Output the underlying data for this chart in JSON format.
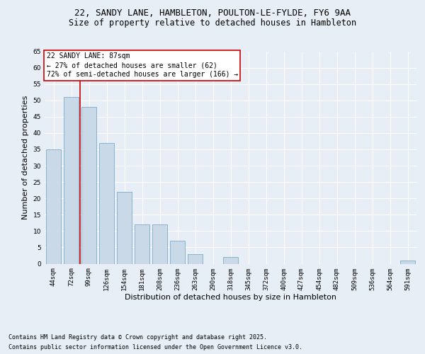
{
  "title1": "22, SANDY LANE, HAMBLETON, POULTON-LE-FYLDE, FY6 9AA",
  "title2": "Size of property relative to detached houses in Hambleton",
  "xlabel": "Distribution of detached houses by size in Hambleton",
  "ylabel": "Number of detached properties",
  "categories": [
    "44sqm",
    "72sqm",
    "99sqm",
    "126sqm",
    "154sqm",
    "181sqm",
    "208sqm",
    "236sqm",
    "263sqm",
    "290sqm",
    "318sqm",
    "345sqm",
    "372sqm",
    "400sqm",
    "427sqm",
    "454sqm",
    "482sqm",
    "509sqm",
    "536sqm",
    "564sqm",
    "591sqm"
  ],
  "values": [
    35,
    51,
    48,
    37,
    22,
    12,
    12,
    7,
    3,
    0,
    2,
    0,
    0,
    0,
    0,
    0,
    0,
    0,
    0,
    0,
    1
  ],
  "bar_color": "#c9d9e8",
  "bar_edge_color": "#7aaac8",
  "red_line_x": 1.5,
  "annotation_title": "22 SANDY LANE: 87sqm",
  "annotation_line1": "← 27% of detached houses are smaller (62)",
  "annotation_line2": "72% of semi-detached houses are larger (166) →",
  "annotation_box_color": "#ffffff",
  "annotation_box_edge": "#cc0000",
  "red_line_color": "#cc0000",
  "bg_color": "#e8eef5",
  "plot_bg_color": "#e8eef5",
  "grid_color": "#ffffff",
  "ylim": [
    0,
    65
  ],
  "yticks": [
    0,
    5,
    10,
    15,
    20,
    25,
    30,
    35,
    40,
    45,
    50,
    55,
    60,
    65
  ],
  "footer1": "Contains HM Land Registry data © Crown copyright and database right 2025.",
  "footer2": "Contains public sector information licensed under the Open Government Licence v3.0.",
  "title1_fontsize": 9,
  "title2_fontsize": 8.5,
  "xlabel_fontsize": 8,
  "ylabel_fontsize": 8,
  "tick_fontsize": 6.5,
  "annotation_fontsize": 7,
  "footer_fontsize": 6
}
